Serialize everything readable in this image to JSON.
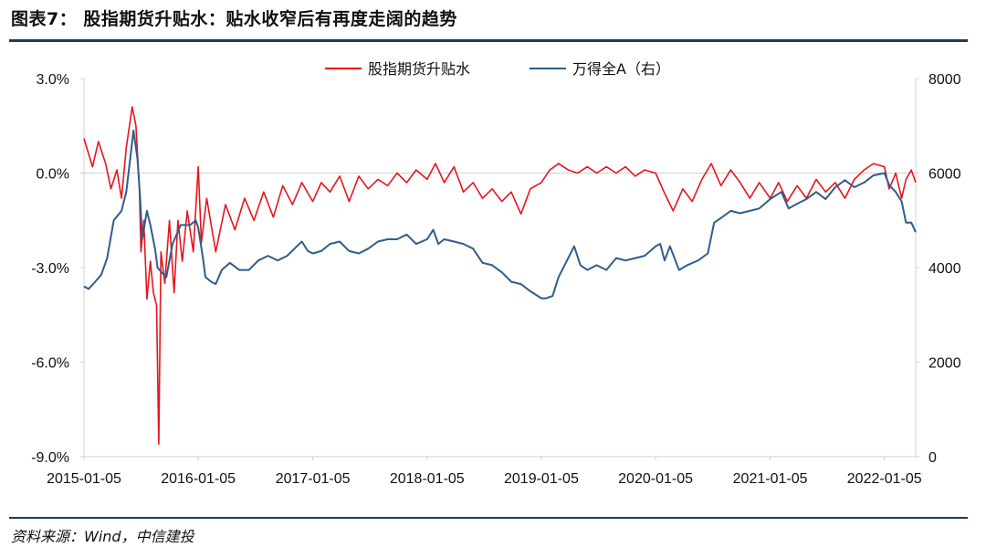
{
  "header": {
    "title": "图表7：  股指期货升贴水：贴水收窄后有再度走阔的趋势"
  },
  "footer": {
    "source": "资料来源：Wind，中信建投"
  },
  "colors": {
    "basis": "#e8141c",
    "index": "#2f5d8c",
    "rule": "#1e3a64",
    "grid": "#d0d0d0"
  },
  "chart_data": {
    "type": "line",
    "title": "",
    "legend_position": "top-center",
    "grid": false,
    "x_ticks": [
      "2015-01-05",
      "2016-01-05",
      "2017-01-05",
      "2018-01-05",
      "2019-01-05",
      "2020-01-05",
      "2021-01-05",
      "2022-01-05"
    ],
    "xlim": [
      "2015-01-05",
      "2022-04-15"
    ],
    "y_left": {
      "ticks": [
        "3.0%",
        "0.0%",
        "-3.0%",
        "-6.0%",
        "-9.0%"
      ],
      "range": [
        -9.0,
        3.0
      ],
      "unit": "%"
    },
    "y_right": {
      "ticks": [
        "8000",
        "6000",
        "4000",
        "2000",
        "0"
      ],
      "range": [
        0,
        8000
      ]
    },
    "series": [
      {
        "name": "股指期货升贴水",
        "axis": "left",
        "color": "#e8141c",
        "points": [
          [
            "2015-01-05",
            1.1
          ],
          [
            "2015-02-01",
            0.2
          ],
          [
            "2015-02-20",
            1.0
          ],
          [
            "2015-03-15",
            0.3
          ],
          [
            "2015-04-01",
            -0.5
          ],
          [
            "2015-04-20",
            0.1
          ],
          [
            "2015-05-05",
            -0.8
          ],
          [
            "2015-05-20",
            0.8
          ],
          [
            "2015-06-08",
            2.1
          ],
          [
            "2015-06-20",
            1.5
          ],
          [
            "2015-07-01",
            -0.5
          ],
          [
            "2015-07-06",
            -2.5
          ],
          [
            "2015-07-15",
            -1.5
          ],
          [
            "2015-07-25",
            -4.0
          ],
          [
            "2015-08-05",
            -2.8
          ],
          [
            "2015-08-15",
            -3.8
          ],
          [
            "2015-08-25",
            -4.2
          ],
          [
            "2015-09-01",
            -8.6
          ],
          [
            "2015-09-08",
            -2.5
          ],
          [
            "2015-09-20",
            -3.5
          ],
          [
            "2015-10-05",
            -1.5
          ],
          [
            "2015-10-20",
            -3.8
          ],
          [
            "2015-11-01",
            -1.5
          ],
          [
            "2015-11-15",
            -2.8
          ],
          [
            "2015-12-01",
            -1.2
          ],
          [
            "2015-12-20",
            -2.5
          ],
          [
            "2016-01-05",
            0.2
          ],
          [
            "2016-01-15",
            -2.2
          ],
          [
            "2016-02-01",
            -0.8
          ],
          [
            "2016-03-01",
            -2.5
          ],
          [
            "2016-04-01",
            -1.0
          ],
          [
            "2016-05-01",
            -1.8
          ],
          [
            "2016-06-01",
            -0.8
          ],
          [
            "2016-07-01",
            -1.5
          ],
          [
            "2016-08-01",
            -0.6
          ],
          [
            "2016-09-01",
            -1.4
          ],
          [
            "2016-10-01",
            -0.4
          ],
          [
            "2016-11-01",
            -1.0
          ],
          [
            "2016-12-01",
            -0.3
          ],
          [
            "2017-01-05",
            -0.9
          ],
          [
            "2017-02-01",
            -0.3
          ],
          [
            "2017-03-01",
            -0.6
          ],
          [
            "2017-04-01",
            -0.1
          ],
          [
            "2017-05-01",
            -0.9
          ],
          [
            "2017-06-01",
            -0.1
          ],
          [
            "2017-07-01",
            -0.5
          ],
          [
            "2017-08-01",
            -0.2
          ],
          [
            "2017-09-01",
            -0.4
          ],
          [
            "2017-10-01",
            0.0
          ],
          [
            "2017-11-01",
            -0.3
          ],
          [
            "2017-12-01",
            0.1
          ],
          [
            "2018-01-05",
            -0.2
          ],
          [
            "2018-02-01",
            0.3
          ],
          [
            "2018-03-01",
            -0.3
          ],
          [
            "2018-04-01",
            0.2
          ],
          [
            "2018-05-01",
            -0.6
          ],
          [
            "2018-06-01",
            -0.3
          ],
          [
            "2018-07-01",
            -0.8
          ],
          [
            "2018-08-01",
            -0.5
          ],
          [
            "2018-09-01",
            -0.9
          ],
          [
            "2018-10-01",
            -0.6
          ],
          [
            "2018-11-01",
            -1.3
          ],
          [
            "2018-12-01",
            -0.5
          ],
          [
            "2019-01-05",
            -0.3
          ],
          [
            "2019-02-01",
            0.1
          ],
          [
            "2019-03-01",
            0.3
          ],
          [
            "2019-04-01",
            0.1
          ],
          [
            "2019-05-01",
            0.0
          ],
          [
            "2019-06-01",
            0.2
          ],
          [
            "2019-07-01",
            0.0
          ],
          [
            "2019-08-01",
            0.2
          ],
          [
            "2019-09-01",
            0.0
          ],
          [
            "2019-10-01",
            0.2
          ],
          [
            "2019-11-01",
            -0.1
          ],
          [
            "2019-12-01",
            0.1
          ],
          [
            "2020-01-05",
            0.0
          ],
          [
            "2020-02-01",
            -0.6
          ],
          [
            "2020-03-01",
            -1.2
          ],
          [
            "2020-04-01",
            -0.5
          ],
          [
            "2020-05-01",
            -0.9
          ],
          [
            "2020-06-01",
            -0.2
          ],
          [
            "2020-07-01",
            0.3
          ],
          [
            "2020-08-01",
            -0.4
          ],
          [
            "2020-09-01",
            0.1
          ],
          [
            "2020-10-01",
            -0.3
          ],
          [
            "2020-11-01",
            -0.8
          ],
          [
            "2020-12-01",
            -0.3
          ],
          [
            "2021-01-05",
            -0.8
          ],
          [
            "2021-02-01",
            -0.3
          ],
          [
            "2021-03-01",
            -0.9
          ],
          [
            "2021-04-01",
            -0.4
          ],
          [
            "2021-05-01",
            -0.8
          ],
          [
            "2021-06-01",
            -0.2
          ],
          [
            "2021-07-01",
            -0.6
          ],
          [
            "2021-08-01",
            -0.3
          ],
          [
            "2021-09-01",
            -0.8
          ],
          [
            "2021-10-01",
            -0.2
          ],
          [
            "2021-11-01",
            0.1
          ],
          [
            "2021-12-01",
            0.3
          ],
          [
            "2022-01-05",
            0.2
          ],
          [
            "2022-01-20",
            -0.5
          ],
          [
            "2022-02-10",
            0.0
          ],
          [
            "2022-03-01",
            -0.8
          ],
          [
            "2022-03-15",
            -0.2
          ],
          [
            "2022-04-01",
            0.1
          ],
          [
            "2022-04-15",
            -0.3
          ]
        ]
      },
      {
        "name": "万得全A（右）",
        "axis": "right",
        "color": "#2f5d8c",
        "points": [
          [
            "2015-01-05",
            3600
          ],
          [
            "2015-01-20",
            3550
          ],
          [
            "2015-02-10",
            3700
          ],
          [
            "2015-03-01",
            3850
          ],
          [
            "2015-03-20",
            4200
          ],
          [
            "2015-04-10",
            5000
          ],
          [
            "2015-05-05",
            5200
          ],
          [
            "2015-05-20",
            5600
          ],
          [
            "2015-06-05",
            6500
          ],
          [
            "2015-06-12",
            6900
          ],
          [
            "2015-06-25",
            6300
          ],
          [
            "2015-07-03",
            5500
          ],
          [
            "2015-07-10",
            4600
          ],
          [
            "2015-07-25",
            5200
          ],
          [
            "2015-08-05",
            4900
          ],
          [
            "2015-08-20",
            4400
          ],
          [
            "2015-08-28",
            4000
          ],
          [
            "2015-09-10",
            3900
          ],
          [
            "2015-09-25",
            3800
          ],
          [
            "2015-10-15",
            4500
          ],
          [
            "2015-11-10",
            4900
          ],
          [
            "2015-12-10",
            4900
          ],
          [
            "2015-12-28",
            5000
          ],
          [
            "2016-01-05",
            4850
          ],
          [
            "2016-01-20",
            4200
          ],
          [
            "2016-01-28",
            3800
          ],
          [
            "2016-02-15",
            3700
          ],
          [
            "2016-03-01",
            3650
          ],
          [
            "2016-03-20",
            3950
          ],
          [
            "2016-04-15",
            4100
          ],
          [
            "2016-05-15",
            3950
          ],
          [
            "2016-06-15",
            3950
          ],
          [
            "2016-07-15",
            4150
          ],
          [
            "2016-08-15",
            4250
          ],
          [
            "2016-09-15",
            4150
          ],
          [
            "2016-10-15",
            4250
          ],
          [
            "2016-11-15",
            4450
          ],
          [
            "2016-12-01",
            4550
          ],
          [
            "2016-12-20",
            4350
          ],
          [
            "2017-01-05",
            4300
          ],
          [
            "2017-02-01",
            4350
          ],
          [
            "2017-03-01",
            4500
          ],
          [
            "2017-04-01",
            4550
          ],
          [
            "2017-05-01",
            4350
          ],
          [
            "2017-06-01",
            4300
          ],
          [
            "2017-07-01",
            4400
          ],
          [
            "2017-08-01",
            4550
          ],
          [
            "2017-09-01",
            4600
          ],
          [
            "2017-10-01",
            4600
          ],
          [
            "2017-11-01",
            4700
          ],
          [
            "2017-12-01",
            4500
          ],
          [
            "2018-01-05",
            4600
          ],
          [
            "2018-01-25",
            4800
          ],
          [
            "2018-02-10",
            4500
          ],
          [
            "2018-03-01",
            4600
          ],
          [
            "2018-04-01",
            4550
          ],
          [
            "2018-05-01",
            4500
          ],
          [
            "2018-06-01",
            4400
          ],
          [
            "2018-07-01",
            4100
          ],
          [
            "2018-08-01",
            4050
          ],
          [
            "2018-09-01",
            3900
          ],
          [
            "2018-10-01",
            3700
          ],
          [
            "2018-11-01",
            3650
          ],
          [
            "2018-12-01",
            3500
          ],
          [
            "2019-01-05",
            3350
          ],
          [
            "2019-01-20",
            3350
          ],
          [
            "2019-02-10",
            3400
          ],
          [
            "2019-03-01",
            3800
          ],
          [
            "2019-04-01",
            4200
          ],
          [
            "2019-04-20",
            4450
          ],
          [
            "2019-05-10",
            4050
          ],
          [
            "2019-06-01",
            3950
          ],
          [
            "2019-07-01",
            4050
          ],
          [
            "2019-08-01",
            3950
          ],
          [
            "2019-09-01",
            4200
          ],
          [
            "2019-10-01",
            4150
          ],
          [
            "2019-11-01",
            4200
          ],
          [
            "2019-12-01",
            4250
          ],
          [
            "2020-01-05",
            4450
          ],
          [
            "2020-01-20",
            4500
          ],
          [
            "2020-02-03",
            4150
          ],
          [
            "2020-02-20",
            4450
          ],
          [
            "2020-03-20",
            3950
          ],
          [
            "2020-04-15",
            4050
          ],
          [
            "2020-05-20",
            4150
          ],
          [
            "2020-06-20",
            4300
          ],
          [
            "2020-07-10",
            4950
          ],
          [
            "2020-08-01",
            5050
          ],
          [
            "2020-09-01",
            5200
          ],
          [
            "2020-10-01",
            5150
          ],
          [
            "2020-11-01",
            5200
          ],
          [
            "2020-12-01",
            5250
          ],
          [
            "2021-01-05",
            5450
          ],
          [
            "2021-02-10",
            5600
          ],
          [
            "2021-03-05",
            5250
          ],
          [
            "2021-04-01",
            5350
          ],
          [
            "2021-05-01",
            5450
          ],
          [
            "2021-06-01",
            5600
          ],
          [
            "2021-07-01",
            5450
          ],
          [
            "2021-08-01",
            5700
          ],
          [
            "2021-09-01",
            5850
          ],
          [
            "2021-10-01",
            5700
          ],
          [
            "2021-11-01",
            5800
          ],
          [
            "2021-12-01",
            5950
          ],
          [
            "2022-01-05",
            6000
          ],
          [
            "2022-01-20",
            5750
          ],
          [
            "2022-02-10",
            5600
          ],
          [
            "2022-03-01",
            5400
          ],
          [
            "2022-03-15",
            4950
          ],
          [
            "2022-04-01",
            4950
          ],
          [
            "2022-04-15",
            4750
          ]
        ]
      }
    ]
  }
}
